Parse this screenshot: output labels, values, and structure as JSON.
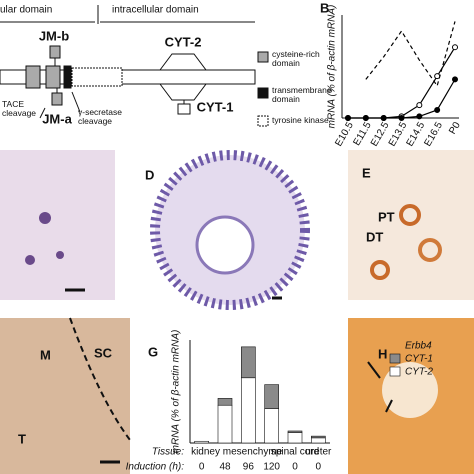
{
  "panel_a": {
    "domains": [
      "ular domain",
      "intracellular domain"
    ],
    "labels": {
      "jm_b": "JM-b",
      "jm_a": "JM-a",
      "cyt_2": "CYT-2",
      "cyt_1": "CYT-1",
      "tace": "TACE cleavage",
      "gamma": "γ-secretase cleavage"
    },
    "legend": [
      "cysteine-rich domain",
      "transmembrane domain",
      "tyrosine kinase"
    ]
  },
  "panel_labels": {
    "b": "B",
    "d": "D",
    "e": "E",
    "g": "G",
    "h": "H"
  },
  "image_labels": {
    "pt": "PT",
    "dt": "DT",
    "m": "M",
    "sc": "SC",
    "t": "T"
  },
  "chart_data": [
    {
      "type": "line",
      "y_label": "mRNA (% of β-actin mRNA)",
      "categories": [
        "E10.5",
        "E11.5",
        "E12.5",
        "E13.5",
        "E14.5",
        "E16.5",
        "P0"
      ],
      "ylim": [
        0,
        3.2
      ],
      "series": [
        {
          "color": "#000000",
          "style": "dashed",
          "marker": "none",
          "values": [
            null,
            1.2,
            1.9,
            2.7,
            1.8,
            1.0,
            3.0
          ]
        },
        {
          "color": "#000000",
          "style": "solid",
          "marker": "open",
          "values": [
            0,
            0,
            0,
            0.05,
            0.4,
            1.3,
            2.2
          ]
        },
        {
          "color": "#000000",
          "style": "solid",
          "marker": "filled",
          "values": [
            0,
            0,
            0,
            0,
            0.05,
            0.25,
            1.2
          ]
        }
      ]
    },
    {
      "type": "stacked_bar",
      "y_label": "mRNA (% of β-actin mRNA)",
      "legend_title": "Erbb4",
      "tissue_label": "Tissue:",
      "induction_label": "Induction (h):",
      "categories": [
        "0",
        "48",
        "96",
        "120",
        "0",
        "0"
      ],
      "groups": [
        {
          "label": "kidney mesenchyme",
          "first": 0,
          "last": 3
        },
        {
          "label": "spinal cord",
          "first": 4,
          "last": 4
        },
        {
          "label": "ureter",
          "first": 5,
          "last": 5
        }
      ],
      "ylim": [
        0,
        3
      ],
      "series": [
        {
          "name": "CYT-1",
          "color": "#8a8a8a",
          "values": [
            0,
            0.2,
            0.9,
            0.7,
            0.05,
            0.05
          ]
        },
        {
          "name": "CYT-2",
          "color": "#ffffff",
          "values": [
            0.05,
            1.1,
            1.9,
            1.0,
            0.3,
            0.15
          ]
        }
      ]
    }
  ]
}
